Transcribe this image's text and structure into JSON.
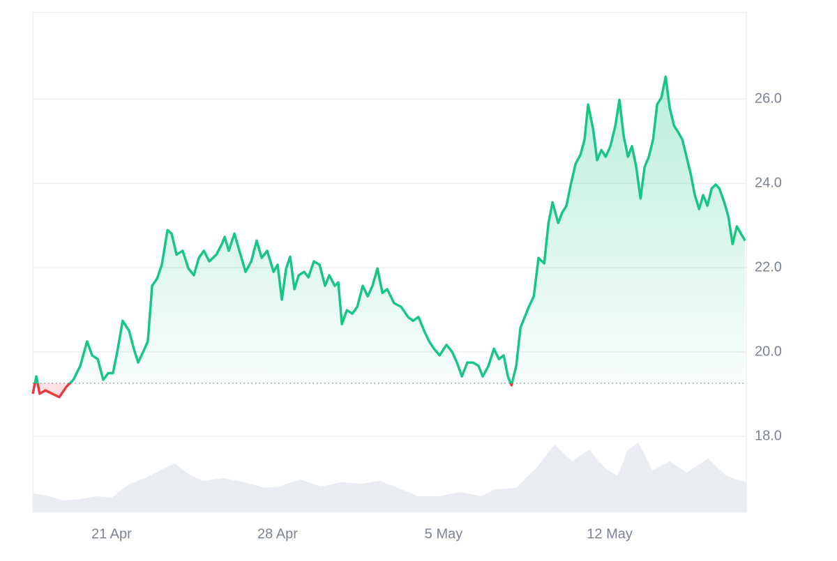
{
  "chart_data": {
    "type": "line",
    "x": [
      17.68,
      17.83,
      17.97,
      18.21,
      18.5,
      18.8,
      19.09,
      19.39,
      19.68,
      19.97,
      20.18,
      20.42,
      20.65,
      20.86,
      21.06,
      21.24,
      21.47,
      21.74,
      21.94,
      22.12,
      22.33,
      22.53,
      22.71,
      22.92,
      23.12,
      23.36,
      23.53,
      23.74,
      24.0,
      24.24,
      24.47,
      24.68,
      24.89,
      25.12,
      25.42,
      25.65,
      25.77,
      25.94,
      26.18,
      26.39,
      26.65,
      26.89,
      27.12,
      27.33,
      27.56,
      27.83,
      28.0,
      28.18,
      28.36,
      28.53,
      28.71,
      28.89,
      29.12,
      29.3,
      29.53,
      29.77,
      30.0,
      30.18,
      30.41,
      30.56,
      30.71,
      30.92,
      31.15,
      31.36,
      31.59,
      31.8,
      32.0,
      32.21,
      32.42,
      32.62,
      32.91,
      33.21,
      33.5,
      33.71,
      33.94,
      34.18,
      34.39,
      34.59,
      34.83,
      35.12,
      35.36,
      35.56,
      35.77,
      36.0,
      36.24,
      36.47,
      36.65,
      36.89,
      37.12,
      37.33,
      37.53,
      37.71,
      37.86,
      38.06,
      38.24,
      38.42,
      38.59,
      38.8,
      39.0,
      39.24,
      39.42,
      39.59,
      39.83,
      40.0,
      40.18,
      40.36,
      40.56,
      40.77,
      40.94,
      41.09,
      41.3,
      41.47,
      41.65,
      41.83,
      42.03,
      42.24,
      42.41,
      42.59,
      42.77,
      42.94,
      43.12,
      43.3,
      43.47,
      43.65,
      43.83,
      44.0,
      44.18,
      44.36,
      44.53,
      44.71,
      44.89,
      45.06,
      45.24,
      45.42,
      45.59,
      45.77,
      45.94,
      46.12,
      46.3,
      46.47,
      46.62,
      46.83,
      47.0,
      47.18,
      47.36,
      47.53,
      47.71
    ],
    "values": [
      19.01,
      19.42,
      19.01,
      19.09,
      19.01,
      18.93,
      19.17,
      19.34,
      19.67,
      20.25,
      19.92,
      19.83,
      19.34,
      19.5,
      19.5,
      20.0,
      20.74,
      20.5,
      20.08,
      19.75,
      20.0,
      20.25,
      21.57,
      21.74,
      22.07,
      22.89,
      22.81,
      22.31,
      22.4,
      21.98,
      21.82,
      22.23,
      22.4,
      22.15,
      22.31,
      22.56,
      22.73,
      22.4,
      22.81,
      22.4,
      21.9,
      22.15,
      22.64,
      22.23,
      22.4,
      21.9,
      22.07,
      21.24,
      21.98,
      22.26,
      21.49,
      21.82,
      21.9,
      21.77,
      22.15,
      22.07,
      21.57,
      21.82,
      21.57,
      21.65,
      20.66,
      20.99,
      20.91,
      21.07,
      21.57,
      21.32,
      21.57,
      21.98,
      21.4,
      21.49,
      21.16,
      21.07,
      20.83,
      20.74,
      20.83,
      20.5,
      20.25,
      20.08,
      19.92,
      20.17,
      20.0,
      19.75,
      19.42,
      19.75,
      19.75,
      19.67,
      19.42,
      19.67,
      20.08,
      19.83,
      19.92,
      19.42,
      19.21,
      19.67,
      20.58,
      20.83,
      21.07,
      21.32,
      22.23,
      22.1,
      23.06,
      23.55,
      23.06,
      23.31,
      23.47,
      23.97,
      24.46,
      24.68,
      25.04,
      25.87,
      25.29,
      24.55,
      24.79,
      24.63,
      24.88,
      25.37,
      25.98,
      25.12,
      24.63,
      24.88,
      24.38,
      23.64,
      24.38,
      24.63,
      25.04,
      25.87,
      26.03,
      26.53,
      25.79,
      25.37,
      25.21,
      25.04,
      24.63,
      24.21,
      23.72,
      23.39,
      23.72,
      23.47,
      23.88,
      23.97,
      23.88,
      23.55,
      23.22,
      22.56,
      22.98,
      22.81,
      22.64
    ],
    "color": "#16c784",
    "color_below": "#ea3943",
    "baseline": 19.26,
    "xlim": [
      17.68,
      47.76
    ],
    "xticks": [
      {
        "value": 21,
        "label": "21 Apr"
      },
      {
        "value": 28,
        "label": "28 Apr"
      },
      {
        "value": 35,
        "label": "5 May"
      },
      {
        "value": 42,
        "label": "12 May"
      }
    ],
    "ylim": [
      16.2,
      28.05
    ],
    "yticks": [
      {
        "value": 18,
        "label": "18.0"
      },
      {
        "value": 20,
        "label": "20.0"
      },
      {
        "value": 22,
        "label": "22.0"
      },
      {
        "value": 24,
        "label": "24.0"
      },
      {
        "value": 26,
        "label": "26.0"
      }
    ],
    "grid": true,
    "volume": {
      "color": "#e9edf2",
      "ylim": [
        0,
        100
      ],
      "x": [
        17.68,
        18.36,
        18.94,
        19.68,
        20.42,
        21.0,
        21.74,
        22.47,
        23.21,
        23.65,
        24.24,
        24.83,
        25.71,
        26.59,
        27.47,
        28.06,
        28.94,
        29.83,
        30.71,
        31.59,
        32.33,
        33.06,
        33.94,
        34.83,
        35.71,
        36.59,
        37.18,
        38.06,
        38.94,
        39.68,
        40.42,
        41.15,
        41.74,
        42.33,
        42.77,
        43.21,
        43.8,
        44.53,
        45.24,
        46.15,
        46.89,
        47.33,
        47.76
      ],
      "values": [
        22.5,
        19.2,
        14.2,
        15.8,
        19.2,
        17.5,
        33.3,
        41.7,
        52.5,
        58.3,
        45.8,
        37.5,
        40.8,
        35.8,
        29.2,
        30.8,
        39.2,
        30.8,
        35.8,
        34.2,
        37.5,
        29.2,
        19.2,
        19.2,
        24.2,
        19.2,
        27.5,
        29.2,
        54.2,
        80.8,
        60.8,
        75,
        54.2,
        43.3,
        75,
        83.3,
        50,
        60.8,
        47.5,
        64.2,
        44.2,
        39.2,
        35.8
      ]
    }
  }
}
